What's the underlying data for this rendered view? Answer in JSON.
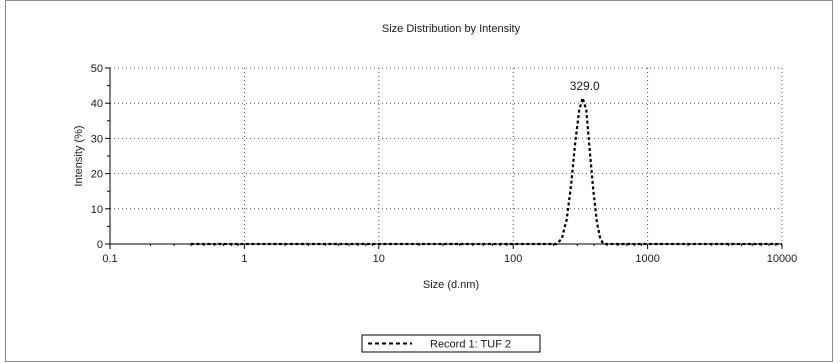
{
  "chart_data": {
    "type": "line",
    "title": "Size Distribution by Intensity",
    "xlabel": "Size (d.nm)",
    "ylabel": "Intensity (%)",
    "xscale": "log",
    "xlim": [
      0.1,
      10000
    ],
    "ylim": [
      0,
      50
    ],
    "xticks": [
      0.1,
      1,
      10,
      100,
      1000,
      10000
    ],
    "xtick_labels": [
      "0.1",
      "1",
      "10",
      "100",
      "1000",
      "10000"
    ],
    "yticks": [
      0,
      10,
      20,
      30,
      40,
      50
    ],
    "ytick_labels": [
      "0",
      "10",
      "20",
      "30",
      "40",
      "50"
    ],
    "grid": true,
    "grid_style": "dotted",
    "legend_position": "bottom-center",
    "series": [
      {
        "name": "Record 1: TUF 2",
        "line_style": "dashed",
        "color": "#000000",
        "x": [
          0.4,
          1,
          10,
          100,
          210,
          230,
          250,
          270,
          290,
          310,
          329,
          350,
          370,
          395,
          420,
          445,
          470,
          1000,
          10000
        ],
        "y": [
          0,
          0,
          0,
          0,
          0,
          1.5,
          7,
          17,
          29,
          38,
          41.5,
          38,
          27,
          15,
          6,
          1.5,
          0,
          0,
          0
        ]
      }
    ],
    "annotations": [
      {
        "text": "329.0",
        "x": 329,
        "y": 41.5
      }
    ]
  }
}
